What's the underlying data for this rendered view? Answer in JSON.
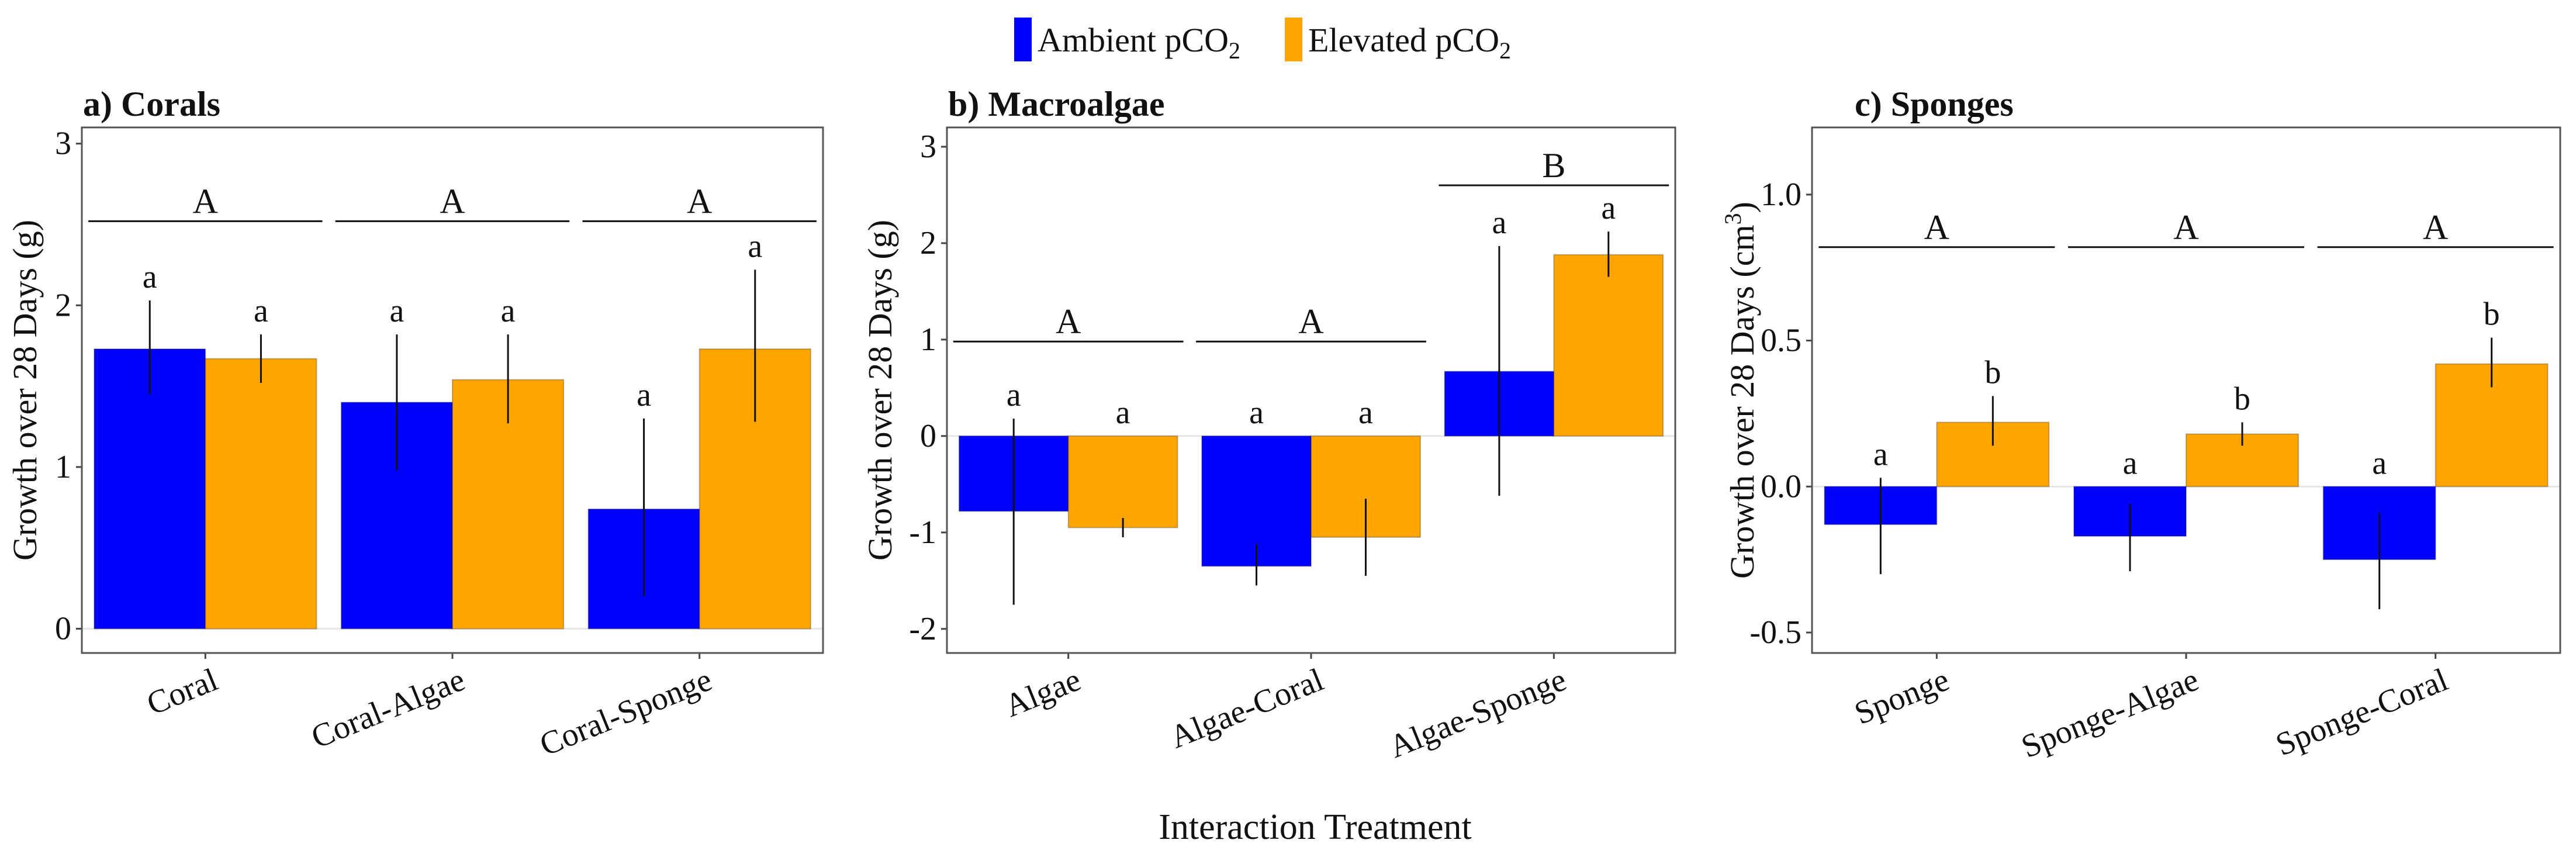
{
  "figure": {
    "legend": [
      {
        "label": "Ambient pCO",
        "sub": "2",
        "color": "#0000FF"
      },
      {
        "label": "Elevated pCO",
        "sub": "2",
        "color": "#FFA500"
      }
    ],
    "xlabel": "Interaction Treatment"
  },
  "chart_data": [
    {
      "type": "bar",
      "title": "a) Corals",
      "ylabel": "Growth over 28 Days (g)",
      "ylabel_sup": "",
      "ylabel_suffix": "",
      "ylim": [
        -0.15,
        3.1
      ],
      "yticks": [
        0,
        1,
        2,
        3
      ],
      "ytick_labels": [
        "0",
        "1",
        "2",
        "3"
      ],
      "categories": [
        "Coral",
        "Coral-Algae",
        "Coral-Sponge"
      ],
      "series": [
        {
          "name": "Ambient pCO2",
          "color": "#0000FF",
          "values": [
            1.73,
            1.4,
            0.74
          ],
          "err_low": [
            1.45,
            0.98,
            0.2
          ],
          "err_high": [
            2.03,
            1.82,
            1.3
          ],
          "letters": [
            "a",
            "a",
            "a"
          ]
        },
        {
          "name": "Elevated pCO2",
          "color": "#FFA500",
          "values": [
            1.67,
            1.54,
            1.73
          ],
          "err_low": [
            1.52,
            1.27,
            1.28
          ],
          "err_high": [
            1.82,
            1.82,
            2.22
          ],
          "letters": [
            "a",
            "a",
            "a"
          ]
        }
      ],
      "groups": [
        {
          "label": "A",
          "from": 0,
          "to": 0,
          "y": 2.52
        },
        {
          "label": "A",
          "from": 1,
          "to": 1,
          "y": 2.52
        },
        {
          "label": "A",
          "from": 2,
          "to": 2,
          "y": 2.52
        }
      ]
    },
    {
      "type": "bar",
      "title": "b) Macroalgae",
      "ylabel": "Growth over 28 Days (g)",
      "ylabel_sup": "",
      "ylabel_suffix": "",
      "ylim": [
        -2.25,
        3.2
      ],
      "yticks": [
        -2,
        -1,
        0,
        1,
        2,
        3
      ],
      "ytick_labels": [
        "-2",
        "-1",
        "0",
        "1",
        "2",
        "3"
      ],
      "categories": [
        "Algae",
        "Algae-Coral",
        "Algae-Sponge"
      ],
      "series": [
        {
          "name": "Ambient pCO2",
          "color": "#0000FF",
          "values": [
            -0.78,
            -1.35,
            0.67
          ],
          "err_low": [
            -1.75,
            -1.55,
            -0.62
          ],
          "err_high": [
            0.18,
            -1.12,
            1.97
          ],
          "letters": [
            "a",
            "a",
            "a"
          ]
        },
        {
          "name": "Elevated pCO2",
          "color": "#FFA500",
          "values": [
            -0.95,
            -1.05,
            1.88
          ],
          "err_low": [
            -1.05,
            -1.45,
            1.65
          ],
          "err_high": [
            -0.85,
            -0.65,
            2.12
          ],
          "letters": [
            "a",
            "a",
            "a"
          ]
        }
      ],
      "groups": [
        {
          "label": "A",
          "from": 0,
          "to": 0,
          "y": 0.98
        },
        {
          "label": "A",
          "from": 1,
          "to": 1,
          "y": 0.98
        },
        {
          "label": "B",
          "from": 2,
          "to": 2,
          "y": 2.6
        }
      ]
    },
    {
      "type": "bar",
      "title": "c) Sponges",
      "ylabel": "Growth over 28 Days (cm",
      "ylabel_sup": "3",
      "ylabel_suffix": ")",
      "ylim": [
        -0.57,
        1.23
      ],
      "yticks": [
        -0.5,
        0.0,
        0.5,
        1.0
      ],
      "ytick_labels": [
        "-0.5",
        "0.0",
        "0.5",
        "1.0"
      ],
      "categories": [
        "Sponge",
        "Sponge-Algae",
        "Sponge-Coral"
      ],
      "series": [
        {
          "name": "Ambient pCO2",
          "color": "#0000FF",
          "values": [
            -0.13,
            -0.17,
            -0.25
          ],
          "err_low": [
            -0.3,
            -0.29,
            -0.42
          ],
          "err_high": [
            0.03,
            -0.06,
            -0.09
          ],
          "letters": [
            "a",
            "a",
            "a"
          ]
        },
        {
          "name": "Elevated pCO2",
          "color": "#FFA500",
          "values": [
            0.22,
            0.18,
            0.42
          ],
          "err_low": [
            0.14,
            0.14,
            0.34
          ],
          "err_high": [
            0.31,
            0.22,
            0.51
          ],
          "letters": [
            "b",
            "b",
            "b"
          ]
        }
      ],
      "groups": [
        {
          "label": "A",
          "from": 0,
          "to": 0,
          "y": 0.82
        },
        {
          "label": "A",
          "from": 1,
          "to": 1,
          "y": 0.82
        },
        {
          "label": "A",
          "from": 2,
          "to": 2,
          "y": 0.82
        }
      ]
    }
  ]
}
